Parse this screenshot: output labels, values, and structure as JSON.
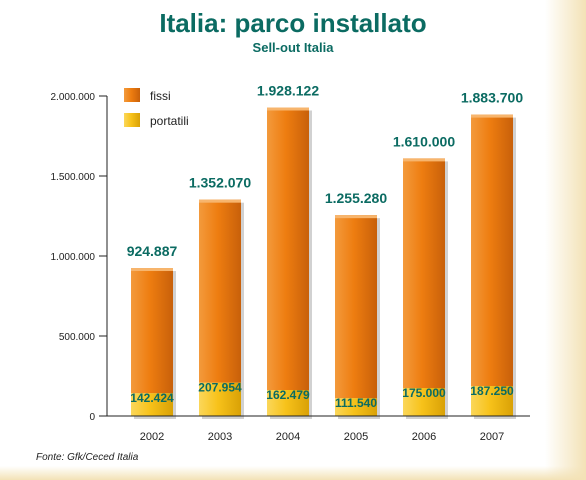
{
  "title": "Italia: parco installato",
  "subtitle": "Sell-out Italia",
  "source": "Fonte: Gfk/Ceced Italia",
  "colors": {
    "fissi": "#ee7d10",
    "portatili": "#f7c21a",
    "accent": "#0b6b62"
  },
  "chart_data": {
    "type": "bar",
    "stacked": true,
    "categories": [
      "2002",
      "2003",
      "2004",
      "2005",
      "2006",
      "2007"
    ],
    "series": [
      {
        "name": "portatili",
        "values": [
          142424,
          207954,
          162479,
          111540,
          175000,
          187250
        ]
      },
      {
        "name": "fissi",
        "values": [
          782463,
          1144116,
          1765643,
          1143740,
          1435000,
          1696450
        ]
      }
    ],
    "totals": [
      924887,
      1352070,
      1928122,
      1255280,
      1610000,
      1883700
    ],
    "value_labels": {
      "totals": [
        "924.887",
        "1.352.070",
        "1.928.122",
        "1.255.280",
        "1.610.000",
        "1.883.700"
      ],
      "portatili": [
        "142.424",
        "207.954",
        "162.479",
        "111.540",
        "175.000",
        "187.250"
      ]
    },
    "yticks": [
      0,
      500000,
      1000000,
      1500000,
      2000000
    ],
    "ytick_labels": [
      "0",
      "500.000",
      "1.000.000",
      "1.500.000",
      "2.000.000"
    ],
    "ylim": [
      0,
      2000000
    ],
    "legend": [
      "fissi",
      "portatili"
    ],
    "legend_position": "top-left",
    "grid": false
  }
}
